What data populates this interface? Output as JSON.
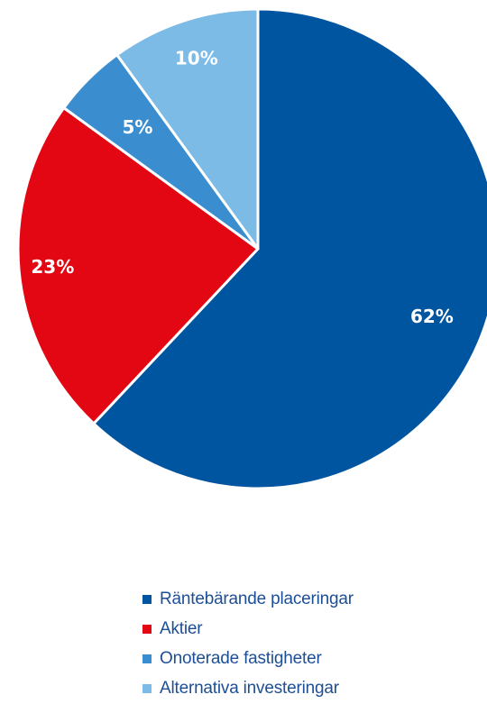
{
  "chart_data": {
    "type": "pie",
    "slices": [
      {
        "label": "Räntebärande placeringar",
        "value": 62,
        "display": "62%",
        "color": "#0055a0"
      },
      {
        "label": "Aktier",
        "value": 23,
        "display": "23%",
        "color": "#e30613"
      },
      {
        "label": "Onoterade fastigheter",
        "value": 5,
        "display": "5%",
        "color": "#3a8ed0"
      },
      {
        "label": "Alternativa investeringar",
        "value": 10,
        "display": "10%",
        "color": "#7cbbe6"
      }
    ],
    "start": "12 o'clock",
    "direction": "clockwise",
    "legend_position": "bottom"
  }
}
